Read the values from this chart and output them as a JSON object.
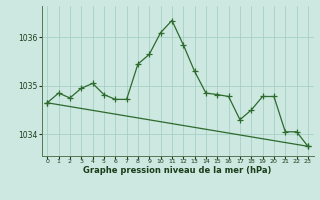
{
  "xlabel": "Graphe pression niveau de la mer (hPa)",
  "hours": [
    0,
    1,
    2,
    3,
    4,
    5,
    6,
    7,
    8,
    9,
    10,
    11,
    12,
    13,
    14,
    15,
    16,
    17,
    18,
    19,
    20,
    21,
    22,
    23
  ],
  "series1": [
    1034.65,
    1034.85,
    1034.75,
    1034.95,
    1035.05,
    1034.82,
    1034.72,
    1034.72,
    1035.45,
    1035.65,
    1036.1,
    1036.35,
    1035.85,
    1035.3,
    1034.85,
    1034.82,
    1034.78,
    1034.3,
    1034.5,
    1034.78,
    1034.78,
    1034.05,
    1034.05,
    1033.75
  ],
  "trend_x": [
    0,
    23
  ],
  "trend_y": [
    1034.65,
    1033.75
  ],
  "line_color": "#2d6a2d",
  "bg_color": "#cce8e0",
  "grid_color": "#a0ccbf",
  "text_color": "#1a3d1a",
  "ylim": [
    1033.55,
    1036.65
  ],
  "yticks": [
    1034,
    1035,
    1036
  ],
  "xticks": [
    0,
    1,
    2,
    3,
    4,
    5,
    6,
    7,
    8,
    9,
    10,
    11,
    12,
    13,
    14,
    15,
    16,
    17,
    18,
    19,
    20,
    21,
    22,
    23
  ],
  "linewidth": 0.9,
  "markersize": 4
}
